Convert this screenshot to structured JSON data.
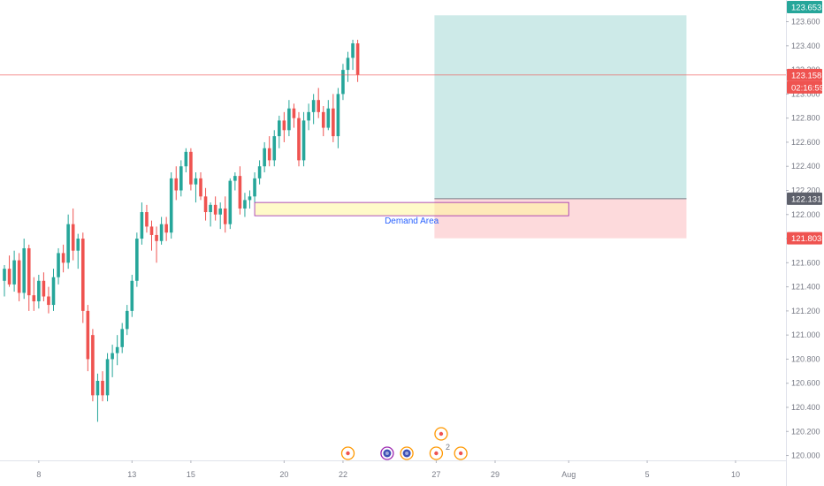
{
  "chart_data": {
    "type": "candlestick",
    "symbol_note": "",
    "y_axis": {
      "range": [
        119.96,
        123.78
      ],
      "ticks": [
        120.0,
        120.2,
        120.4,
        120.6,
        120.8,
        121.0,
        121.2,
        121.4,
        121.6,
        121.8,
        122.0,
        122.2,
        122.4,
        122.6,
        122.8,
        123.0,
        123.2,
        123.4,
        123.6
      ],
      "tick_labels": [
        "120.000",
        "120.200",
        "120.400",
        "120.600",
        "120.800",
        "121.000",
        "121.200",
        "121.400",
        "121.600",
        "121.800",
        "122.000",
        "122.200",
        "122.400",
        "122.600",
        "122.800",
        "123.000",
        "123.200",
        "123.400",
        "123.600"
      ]
    },
    "x_axis": {
      "ticks": [
        {
          "index": 7,
          "label": "8"
        },
        {
          "index": 26,
          "label": "13"
        },
        {
          "index": 38,
          "label": "15"
        },
        {
          "index": 57,
          "label": "20"
        },
        {
          "index": 69,
          "label": "22"
        },
        {
          "index": 88,
          "label": "27"
        },
        {
          "index": 100,
          "label": "29"
        },
        {
          "index": 115,
          "label": "Aug"
        },
        {
          "index": 131,
          "label": "5"
        },
        {
          "index": 149,
          "label": "10"
        }
      ]
    },
    "current_price": {
      "value": 123.158,
      "label": "123.158",
      "countdown": "02:16:59"
    },
    "position": {
      "take_profit": {
        "value": 123.653,
        "label": "123.653"
      },
      "entry": {
        "value": 122.131,
        "label": "122.131"
      },
      "stop_loss": {
        "value": 121.803,
        "label": "121.803"
      },
      "start_index": 88,
      "end_index": 139
    },
    "zones": [
      {
        "label": "Demand Area",
        "top": 122.1,
        "bottom": 121.99,
        "start_index": 51,
        "end_index": 115
      }
    ],
    "event_markers": [
      {
        "index": 70,
        "type": "dot",
        "color": "#ff9800"
      },
      {
        "index": 78,
        "type": "flag",
        "color": "#9c27b0"
      },
      {
        "index": 82,
        "type": "flag",
        "color": "#ff9800"
      },
      {
        "index": 88,
        "type": "dot",
        "color": "#ff9800"
      },
      {
        "index": 89,
        "type": "dot",
        "color": "#ff9800",
        "stacked": true
      },
      {
        "index": 93,
        "type": "dot",
        "color": "#ff9800"
      }
    ],
    "event_marker_count_label": "2",
    "candles": [
      [
        121.45,
        121.58,
        121.32,
        121.55
      ],
      [
        121.55,
        121.66,
        121.4,
        121.42
      ],
      [
        121.42,
        121.7,
        121.36,
        121.62
      ],
      [
        121.62,
        121.68,
        121.28,
        121.35
      ],
      [
        121.35,
        121.8,
        121.3,
        121.72
      ],
      [
        121.72,
        121.75,
        121.2,
        121.33
      ],
      [
        121.33,
        121.48,
        121.2,
        121.28
      ],
      [
        121.28,
        121.5,
        121.22,
        121.45
      ],
      [
        121.45,
        121.52,
        121.28,
        121.32
      ],
      [
        121.32,
        121.4,
        121.18,
        121.25
      ],
      [
        121.25,
        121.55,
        121.2,
        121.48
      ],
      [
        121.48,
        121.72,
        121.42,
        121.68
      ],
      [
        121.68,
        121.75,
        121.52,
        121.6
      ],
      [
        121.6,
        122.0,
        121.55,
        121.92
      ],
      [
        121.92,
        122.05,
        121.62,
        121.7
      ],
      [
        121.7,
        121.84,
        121.55,
        121.8
      ],
      [
        121.8,
        121.85,
        121.1,
        121.2
      ],
      [
        121.2,
        121.25,
        120.7,
        120.8
      ],
      [
        121.0,
        121.05,
        120.45,
        120.5
      ],
      [
        120.5,
        120.68,
        120.28,
        120.62
      ],
      [
        120.62,
        120.7,
        120.45,
        120.5
      ],
      [
        120.5,
        120.85,
        120.45,
        120.8
      ],
      [
        120.8,
        120.92,
        120.65,
        120.85
      ],
      [
        120.85,
        121.0,
        120.75,
        120.9
      ],
      [
        120.9,
        121.1,
        120.85,
        121.05
      ],
      [
        121.05,
        121.25,
        121.0,
        121.2
      ],
      [
        121.2,
        121.5,
        121.15,
        121.45
      ],
      [
        121.45,
        121.85,
        121.4,
        121.8
      ],
      [
        121.8,
        122.1,
        121.75,
        122.02
      ],
      [
        122.02,
        122.08,
        121.85,
        121.9
      ],
      [
        121.9,
        121.95,
        121.7,
        121.83
      ],
      [
        121.83,
        121.9,
        121.6,
        121.78
      ],
      [
        121.78,
        121.98,
        121.75,
        121.92
      ],
      [
        121.92,
        121.98,
        121.78,
        121.85
      ],
      [
        121.85,
        122.35,
        121.8,
        122.3
      ],
      [
        122.3,
        122.4,
        122.12,
        122.2
      ],
      [
        122.2,
        122.45,
        122.15,
        122.4
      ],
      [
        122.4,
        122.55,
        122.35,
        122.52
      ],
      [
        122.52,
        122.55,
        122.2,
        122.25
      ],
      [
        122.25,
        122.35,
        122.1,
        122.3
      ],
      [
        122.3,
        122.35,
        122.12,
        122.15
      ],
      [
        122.15,
        122.22,
        121.95,
        122.02
      ],
      [
        122.02,
        122.1,
        121.9,
        122.08
      ],
      [
        122.08,
        122.15,
        121.95,
        122.0
      ],
      [
        122.0,
        122.1,
        121.88,
        122.05
      ],
      [
        122.05,
        122.15,
        121.85,
        121.92
      ],
      [
        121.92,
        122.3,
        121.88,
        122.28
      ],
      [
        122.28,
        122.35,
        122.2,
        122.32
      ],
      [
        122.32,
        122.4,
        122.0,
        122.05
      ],
      [
        122.05,
        122.18,
        121.98,
        122.12
      ],
      [
        122.12,
        122.2,
        122.05,
        122.15
      ],
      [
        122.15,
        122.35,
        122.1,
        122.3
      ],
      [
        122.3,
        122.45,
        122.25,
        122.4
      ],
      [
        122.4,
        122.6,
        122.35,
        122.55
      ],
      [
        122.55,
        122.65,
        122.4,
        122.45
      ],
      [
        122.45,
        122.7,
        122.4,
        122.65
      ],
      [
        122.65,
        122.82,
        122.55,
        122.78
      ],
      [
        122.78,
        122.85,
        122.6,
        122.7
      ],
      [
        122.7,
        122.95,
        122.65,
        122.88
      ],
      [
        122.88,
        122.92,
        122.72,
        122.8
      ],
      [
        122.8,
        122.85,
        122.4,
        122.45
      ],
      [
        122.45,
        122.85,
        122.4,
        122.78
      ],
      [
        122.78,
        122.92,
        122.7,
        122.85
      ],
      [
        122.85,
        123.0,
        122.75,
        122.95
      ],
      [
        122.95,
        123.05,
        122.8,
        122.85
      ],
      [
        122.85,
        122.9,
        122.65,
        122.72
      ],
      [
        122.72,
        122.95,
        122.7,
        122.88
      ],
      [
        122.88,
        123.0,
        122.6,
        122.65
      ],
      [
        122.65,
        123.05,
        122.55,
        123.0
      ],
      [
        123.0,
        123.25,
        122.95,
        123.2
      ],
      [
        123.2,
        123.35,
        123.1,
        123.3
      ],
      [
        123.3,
        123.45,
        123.2,
        123.42
      ],
      [
        123.42,
        123.45,
        123.1,
        123.16
      ]
    ]
  }
}
